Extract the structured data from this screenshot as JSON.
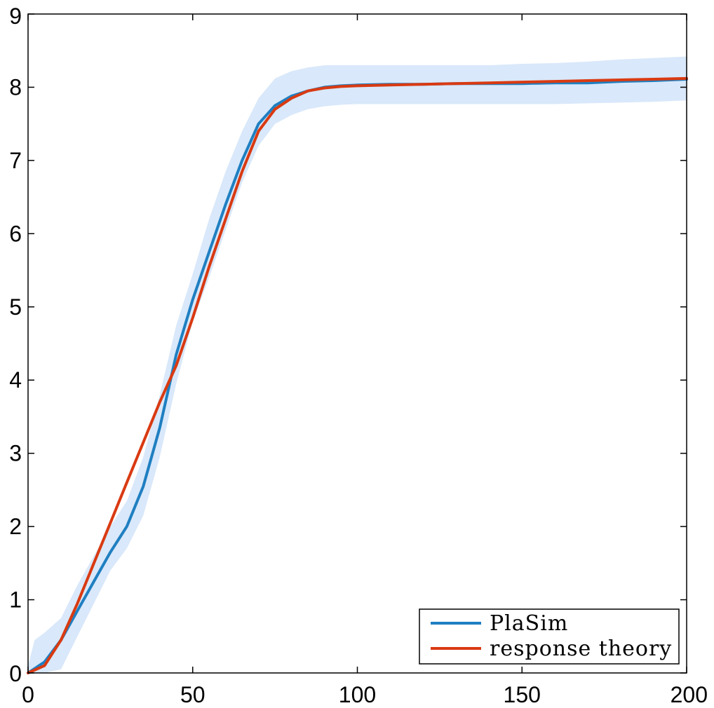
{
  "chart_data": {
    "type": "line",
    "title": "",
    "xlabel": "",
    "ylabel": "",
    "xlim": [
      0,
      200
    ],
    "ylim": [
      0,
      9
    ],
    "xticks": [
      0,
      50,
      100,
      150,
      200
    ],
    "yticks": [
      0,
      1,
      2,
      3,
      4,
      5,
      6,
      7,
      8,
      9
    ],
    "grid": false,
    "legend_position": "bottom-right",
    "series": [
      {
        "name": "PlaSim",
        "color": "#1f7fc1",
        "x": [
          0,
          5,
          10,
          15,
          20,
          25,
          30,
          35,
          40,
          45,
          50,
          55,
          60,
          65,
          70,
          75,
          80,
          85,
          90,
          95,
          100,
          110,
          120,
          130,
          140,
          150,
          160,
          170,
          180,
          190,
          200
        ],
        "y": [
          0.0,
          0.15,
          0.45,
          0.85,
          1.25,
          1.65,
          2.0,
          2.55,
          3.35,
          4.35,
          5.1,
          5.75,
          6.4,
          7.0,
          7.5,
          7.75,
          7.88,
          7.95,
          8.0,
          8.02,
          8.03,
          8.04,
          8.04,
          8.05,
          8.05,
          8.05,
          8.06,
          8.06,
          8.08,
          8.09,
          8.11
        ]
      },
      {
        "name": "response theory",
        "color": "#d93a12",
        "x": [
          0,
          5,
          10,
          15,
          20,
          25,
          30,
          35,
          40,
          45,
          50,
          55,
          60,
          65,
          70,
          75,
          80,
          85,
          90,
          95,
          100,
          110,
          120,
          130,
          140,
          150,
          160,
          170,
          180,
          190,
          200
        ],
        "y": [
          0.0,
          0.1,
          0.45,
          0.95,
          1.5,
          2.05,
          2.6,
          3.15,
          3.7,
          4.2,
          4.85,
          5.55,
          6.2,
          6.85,
          7.4,
          7.7,
          7.85,
          7.95,
          7.99,
          8.01,
          8.02,
          8.03,
          8.04,
          8.05,
          8.06,
          8.07,
          8.08,
          8.09,
          8.1,
          8.11,
          8.12
        ]
      }
    ],
    "band": {
      "color": "#d9e8fa",
      "x": [
        0,
        2,
        5,
        10,
        15,
        20,
        25,
        30,
        35,
        40,
        45,
        50,
        55,
        60,
        65,
        70,
        75,
        80,
        85,
        90,
        95,
        100,
        110,
        120,
        130,
        140,
        150,
        160,
        170,
        180,
        190,
        200
      ],
      "lower": [
        0.0,
        0.0,
        0.0,
        0.05,
        0.5,
        0.95,
        1.4,
        1.7,
        2.15,
        2.95,
        3.95,
        4.8,
        5.4,
        6.05,
        6.7,
        7.2,
        7.5,
        7.62,
        7.7,
        7.74,
        7.76,
        7.77,
        7.77,
        7.77,
        7.77,
        7.77,
        7.77,
        7.77,
        7.78,
        7.79,
        7.8,
        7.82
      ],
      "upper": [
        0.1,
        0.45,
        0.55,
        0.75,
        1.2,
        1.6,
        2.0,
        2.35,
        2.95,
        3.8,
        4.75,
        5.45,
        6.2,
        6.85,
        7.4,
        7.85,
        8.12,
        8.22,
        8.27,
        8.3,
        8.3,
        8.3,
        8.3,
        8.3,
        8.3,
        8.3,
        8.32,
        8.33,
        8.35,
        8.38,
        8.4,
        8.42
      ]
    }
  }
}
